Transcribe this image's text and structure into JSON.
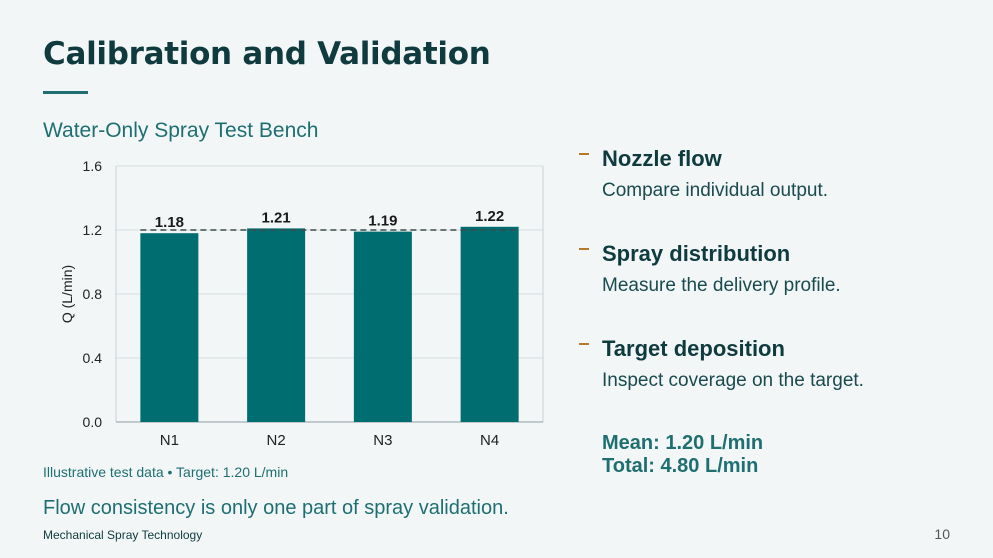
{
  "slide": {
    "title": "Calibration and Validation",
    "chart_title": "Water-Only Spray Test Bench",
    "chart_note": "Illustrative test data • Target: 1.20 L/min",
    "takeaway": "Flow consistency is only one part of spray validation.",
    "footer": "Mechanical Spray Technology",
    "page_number": "10"
  },
  "points": [
    {
      "title": "Nozzle flow",
      "desc": "Compare individual output."
    },
    {
      "title": "Spray distribution",
      "desc": "Measure the delivery profile."
    },
    {
      "title": "Target deposition",
      "desc": "Inspect coverage on the target."
    }
  ],
  "stats": {
    "mean": "Mean: 1.20 L/min",
    "total": "Total: 4.80 L/min"
  },
  "colors": {
    "bar": "#006d70",
    "accent": "#b8762a",
    "title": "#0f3b3f"
  },
  "chart_data": {
    "type": "bar",
    "categories": [
      "N1",
      "N2",
      "N3",
      "N4"
    ],
    "values": [
      1.18,
      1.21,
      1.19,
      1.22
    ],
    "data_labels": [
      "1.18",
      "1.21",
      "1.19",
      "1.22"
    ],
    "ylabel": "Q (L/min)",
    "xlabel": "",
    "ylim": [
      0,
      1.6
    ],
    "yticks": [
      0.0,
      0.4,
      0.8,
      1.2,
      1.6
    ],
    "ytick_labels": [
      "0.0",
      "0.4",
      "0.8",
      "1.2",
      "1.6"
    ],
    "target": 1.2,
    "grid": true
  }
}
